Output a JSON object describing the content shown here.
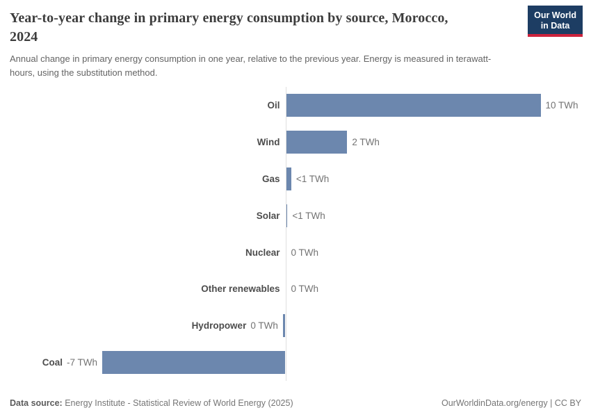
{
  "header": {
    "title": "Year-to-year change in primary energy consumption by source, Morocco, 2024",
    "subtitle": "Annual change in primary energy consumption in one year, relative to the previous year. Energy is measured in terawatt-hours, using the substitution method.",
    "logo": {
      "line1": "Our World",
      "line2": "in Data"
    }
  },
  "footer": {
    "datasource_label": "Data source:",
    "datasource_value": "Energy Institute - Statistical Review of World Energy (2025)",
    "rights": "OurWorldinData.org/energy | CC BY"
  },
  "colors": {
    "bar": "#6c87ae",
    "axis": "#dedede",
    "logo_navy": "#1d3d63",
    "logo_red": "#cd233c",
    "category_label": "#4d4d4d",
    "value_label": "#737373"
  },
  "chart_data": {
    "type": "bar",
    "orientation": "horizontal",
    "unit": "TWh",
    "title": "Year-to-year change in primary energy consumption by source, Morocco, 2024",
    "categories": [
      "Oil",
      "Wind",
      "Gas",
      "Solar",
      "Nuclear",
      "Other renewables",
      "Hydropower",
      "Coal"
    ],
    "values": [
      10,
      2.4,
      0.2,
      0.05,
      0,
      0,
      -0.1,
      -7.2
    ],
    "value_labels": [
      "10 TWh",
      "2 TWh",
      "<1 TWh",
      "<1 TWh",
      "0 TWh",
      "0 TWh",
      "0 TWh",
      "-7 TWh"
    ],
    "xlim": [
      -8,
      11
    ],
    "grid": false,
    "legend": "none",
    "baseline_axis": "vertical zero line"
  }
}
